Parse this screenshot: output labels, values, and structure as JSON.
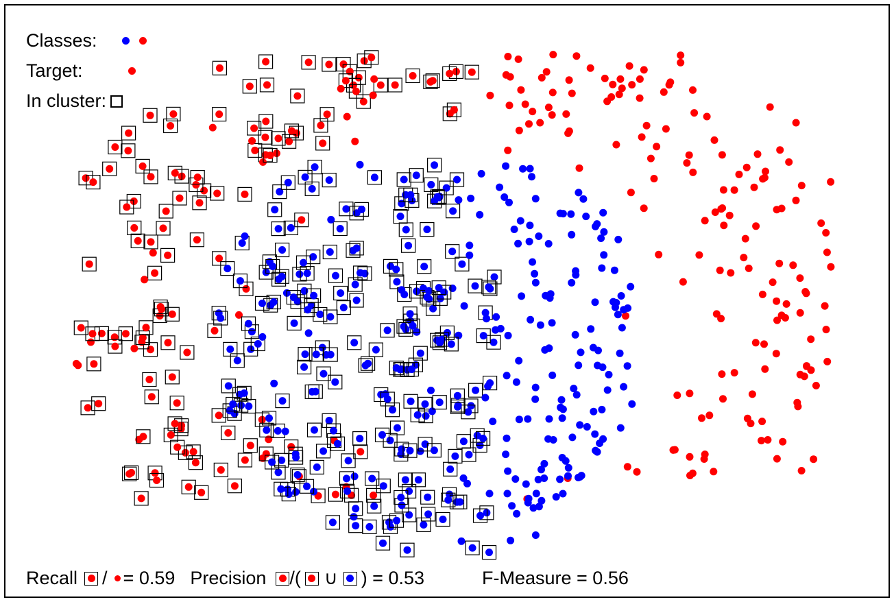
{
  "legend": {
    "classes_label": "Classes:",
    "target_label": "Target:",
    "in_cluster_label": "In cluster:"
  },
  "footer": {
    "recall_label": "Recall",
    "recall_slash": "/",
    "recall_value": "= 0.59",
    "precision_label": "Precision",
    "precision_open": "/(",
    "precision_union": "∪",
    "precision_close": ") = 0.53",
    "fmeasure": "F-Measure = 0.56"
  },
  "colors": {
    "blue": "#0000ff",
    "red": "#ff0000",
    "box": "#000000"
  }
}
